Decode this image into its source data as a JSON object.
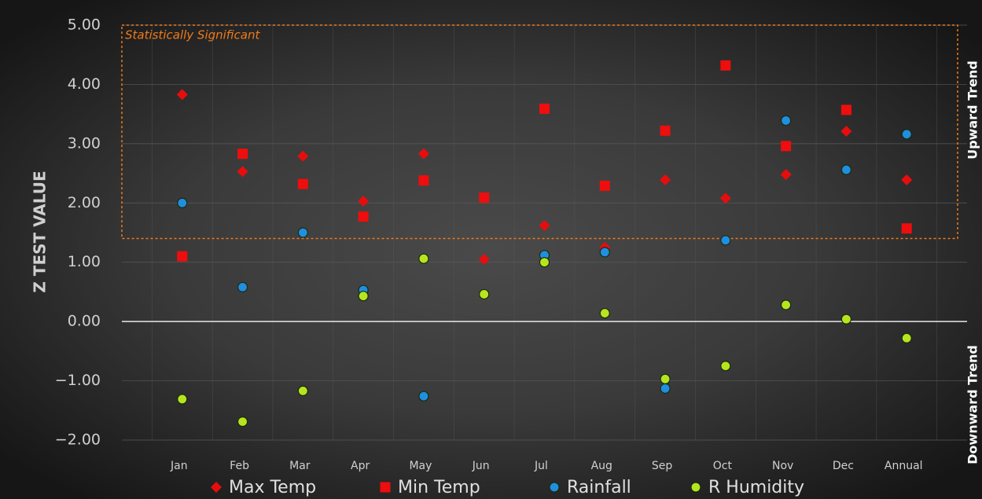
{
  "chart_data": {
    "type": "scatter",
    "y_axis_label": "Z TEST VALUE",
    "annotations": {
      "significant": "Statistically Significant",
      "upward": "Upward Trend",
      "downward": "Downward Trend"
    },
    "significant_range": [
      1.4,
      5.0
    ],
    "categories": [
      "Jan",
      "Feb",
      "Mar",
      "Apr",
      "May",
      "Jun",
      "Jul",
      "Aug",
      "Sep",
      "Oct",
      "Nov",
      "Dec",
      "Annual"
    ],
    "series": [
      {
        "name": "Max Temp",
        "color": "#e80d0d",
        "marker": "diamond",
        "values": [
          3.83,
          2.53,
          2.79,
          2.03,
          2.83,
          1.05,
          1.62,
          1.25,
          2.39,
          2.08,
          2.48,
          3.21,
          2.39
        ]
      },
      {
        "name": "Min Temp",
        "color": "#f00d0d",
        "marker": "square",
        "values": [
          1.1,
          2.83,
          2.32,
          1.77,
          2.38,
          2.09,
          3.59,
          2.29,
          3.22,
          4.32,
          2.96,
          3.57,
          1.57
        ]
      },
      {
        "name": "Rainfall",
        "color": "#1f8fe0",
        "marker": "circle",
        "values": [
          2.0,
          0.58,
          1.5,
          0.53,
          -1.26,
          null,
          1.12,
          1.17,
          -1.13,
          1.37,
          3.39,
          2.56,
          3.16
        ]
      },
      {
        "name": "R Humidity",
        "color": "#b6e51f",
        "marker": "circle",
        "values": [
          -1.31,
          -1.69,
          -1.17,
          0.43,
          1.06,
          0.46,
          1.0,
          0.14,
          -0.97,
          -0.75,
          0.28,
          0.04,
          -0.28
        ]
      }
    ],
    "ylim": [
      -2,
      5
    ],
    "yticks": [
      {
        "value": -2,
        "label": "−2.00"
      },
      {
        "value": -1,
        "label": "−1.00"
      },
      {
        "value": 0,
        "label": "0.00"
      },
      {
        "value": 1,
        "label": "1.00"
      },
      {
        "value": 2,
        "label": "2.00"
      },
      {
        "value": 3,
        "label": "3.00"
      },
      {
        "value": 4,
        "label": "4.00"
      },
      {
        "value": 5,
        "label": "5.00"
      }
    ],
    "grid": true
  }
}
